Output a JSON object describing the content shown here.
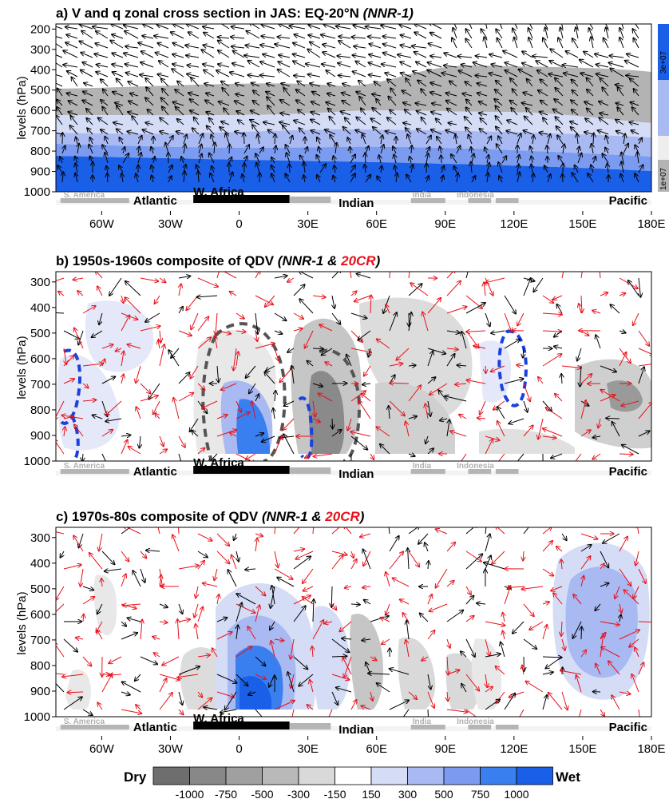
{
  "chart_data": [
    {
      "type": "contour",
      "title_prefix": "a) V and q zonal cross section in JAS: EQ-20°N",
      "title_parts": [
        {
          "text": "(NNR-1)",
          "color": "#000000"
        }
      ],
      "ylabel": "levels (hPa)",
      "y_ticks": [
        200,
        300,
        400,
        500,
        600,
        700,
        800,
        900,
        1000
      ],
      "ylim": [
        1000,
        175
      ],
      "x_ticks": [
        "60W",
        "30W",
        "0",
        "30E",
        "60E",
        "90E",
        "120E",
        "150E",
        "180E"
      ],
      "x_tick_values": [
        -60,
        -30,
        0,
        30,
        60,
        90,
        120,
        150,
        180
      ],
      "xlim": [
        -80,
        180
      ],
      "colorbar_labels": [
        "3e+07",
        "1e+07"
      ],
      "series": [
        {
          "name": "moist band 1000-780 hPa",
          "color": "#1a5fe8"
        },
        {
          "name": "moist band 800-700 hPa",
          "color": "#7a9bf0"
        },
        {
          "name": "moist band 700-600 hPa",
          "color": "#d4dcf6"
        },
        {
          "name": "dry band 600-470 hPa",
          "color": "#b3b3b3"
        }
      ]
    },
    {
      "type": "contour",
      "title_prefix": "b) 1950s-1960s composite of QDV",
      "title_parts": [
        {
          "text": "(NNR-1 &",
          "color": "#000000"
        },
        {
          "text": "20CR",
          "color": "#e8101a"
        },
        {
          "text": ")",
          "color": "#000000"
        }
      ],
      "ylabel": "levels (hPa)",
      "y_ticks": [
        300,
        400,
        500,
        600,
        700,
        800,
        900,
        1000
      ],
      "ylim": [
        1000,
        260
      ],
      "x_ticks": [],
      "xlim": [
        -80,
        180
      ],
      "series": [
        {
          "name": "NNR-1 vectors",
          "color": "#000000"
        },
        {
          "name": "20CR vectors",
          "color": "#e8101a"
        }
      ]
    },
    {
      "type": "contour",
      "title_prefix": "c) 1970s-80s composite of QDV",
      "title_parts": [
        {
          "text": "(NNR-1 &",
          "color": "#000000"
        },
        {
          "text": "20CR",
          "color": "#e8101a"
        },
        {
          "text": ")",
          "color": "#000000"
        }
      ],
      "ylabel": "levels (hPa)",
      "y_ticks": [
        300,
        400,
        500,
        600,
        700,
        800,
        900,
        1000
      ],
      "ylim": [
        1000,
        260
      ],
      "x_ticks": [
        "60W",
        "30W",
        "0",
        "30E",
        "60E",
        "90E",
        "120E",
        "150E",
        "180E"
      ],
      "x_tick_values": [
        -60,
        -30,
        0,
        30,
        60,
        90,
        120,
        150,
        180
      ],
      "xlim": [
        -80,
        180
      ],
      "series": [
        {
          "name": "NNR-1 vectors",
          "color": "#000000"
        },
        {
          "name": "20CR vectors",
          "color": "#e8101a"
        }
      ]
    }
  ],
  "regions": {
    "s_america": {
      "label": "S. America",
      "x": [
        -78,
        -48
      ]
    },
    "atlantic": {
      "label": "Atlantic",
      "x": [
        -48,
        -20
      ]
    },
    "w_africa": {
      "label": "W. Africa",
      "x": [
        -20,
        22
      ]
    },
    "indian": {
      "label": "Indian",
      "x": [
        40,
        75
      ]
    },
    "india": {
      "label": "India",
      "x": [
        75,
        90
      ]
    },
    "indonesia": {
      "label": "Indonesia",
      "x": [
        95,
        120
      ]
    },
    "pacific": {
      "label": "Pacific",
      "x": [
        150,
        180
      ]
    }
  },
  "legend": {
    "dry_label": "Dry",
    "wet_label": "Wet",
    "ticks": [
      "-1000",
      "-750",
      "-500",
      "-300",
      "-150",
      "150",
      "300",
      "500",
      "750",
      "1000"
    ],
    "colors": [
      "#6e6e6e",
      "#888888",
      "#a0a0a0",
      "#b9b9b9",
      "#d9d9d9",
      "#ffffff",
      "#d4dcf6",
      "#a9b9f2",
      "#7a9bf0",
      "#3a7ff0",
      "#1a5fe8"
    ]
  },
  "colors": {
    "nnr1": "#000000",
    "cr20": "#e8101a",
    "dashed_blue": "#1a40e0",
    "dashed_gray": "#555555"
  }
}
